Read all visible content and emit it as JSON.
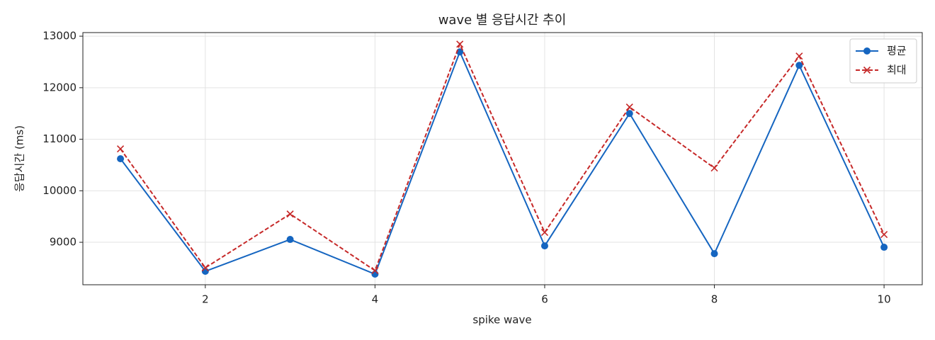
{
  "chart_data": {
    "type": "line",
    "title": "wave 별 응답시간 추이",
    "x_label": "spike wave",
    "y_label": "응답시간 (ms)",
    "x": [
      1,
      2,
      3,
      4,
      5,
      6,
      7,
      8,
      9,
      10
    ],
    "series": [
      {
        "name": "평균",
        "color": "#1565c0",
        "marker": "circle",
        "linestyle": "solid",
        "values": [
          10621,
          8437,
          9055,
          8382,
          12695,
          8931,
          11500,
          8780,
          12434,
          8904
        ]
      },
      {
        "name": "최대",
        "color": "#c62828",
        "marker": "x",
        "linestyle": "dashed",
        "values": [
          10813,
          8505,
          9549,
          8451,
          12846,
          9192,
          11624,
          10442,
          12613,
          9151
        ]
      }
    ],
    "xlim": [
      0.557,
      10.45
    ],
    "ylim": [
      8176,
      13070
    ],
    "xticks": [
      2,
      4,
      6,
      8,
      10
    ],
    "yticks": [
      9000,
      10000,
      11000,
      12000,
      13000
    ],
    "grid": true,
    "legend": "upper right"
  }
}
